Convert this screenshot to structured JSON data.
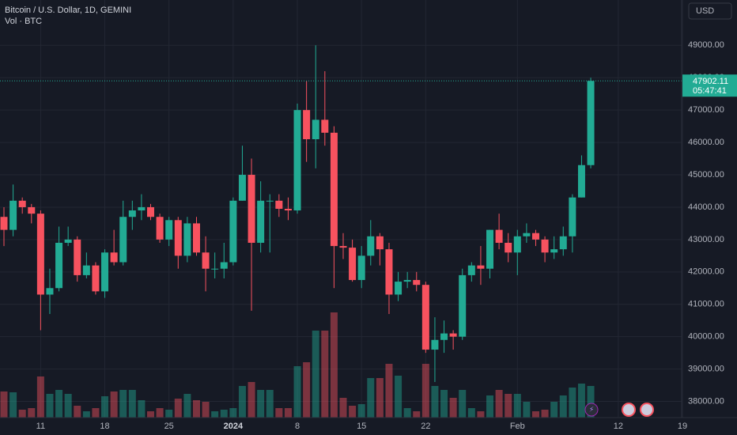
{
  "chart_data": {
    "type": "candlestick",
    "title": "Bitcoin / U.S. Dollar, 1D, GEMINI",
    "subtitle": "Vol · BTC",
    "currency": "USD",
    "countdown": "05:47:41",
    "up_color": "#22ab94",
    "down_color": "#f7525f",
    "x": [
      "2023-12-07",
      "2023-12-08",
      "2023-12-09",
      "2023-12-10",
      "2023-12-11",
      "2023-12-12",
      "2023-12-13",
      "2023-12-14",
      "2023-12-15",
      "2023-12-16",
      "2023-12-17",
      "2023-12-18",
      "2023-12-19",
      "2023-12-20",
      "2023-12-21",
      "2023-12-22",
      "2023-12-23",
      "2023-12-24",
      "2023-12-25",
      "2023-12-26",
      "2023-12-27",
      "2023-12-28",
      "2023-12-29",
      "2023-12-30",
      "2023-12-31",
      "2024-01-01",
      "2024-01-02",
      "2024-01-03",
      "2024-01-04",
      "2024-01-05",
      "2024-01-06",
      "2024-01-07",
      "2024-01-08",
      "2024-01-09",
      "2024-01-10",
      "2024-01-11",
      "2024-01-12",
      "2024-01-13",
      "2024-01-14",
      "2024-01-15",
      "2024-01-16",
      "2024-01-17",
      "2024-01-18",
      "2024-01-19",
      "2024-01-20",
      "2024-01-21",
      "2024-01-22",
      "2024-01-23",
      "2024-01-24",
      "2024-01-25",
      "2024-01-26",
      "2024-01-27",
      "2024-01-28",
      "2024-01-29",
      "2024-01-30",
      "2024-01-31",
      "2024-02-01",
      "2024-02-02",
      "2024-02-03",
      "2024-02-04",
      "2024-02-05",
      "2024-02-06",
      "2024-02-07",
      "2024-02-08",
      "2024-02-09"
    ],
    "open": [
      43700,
      43300,
      44200,
      44000,
      43800,
      41300,
      41500,
      42900,
      43000,
      41900,
      42200,
      41400,
      42600,
      42300,
      43700,
      43900,
      44000,
      43700,
      43000,
      43600,
      42500,
      43500,
      42600,
      42100,
      42100,
      42300,
      44200,
      45000,
      42900,
      44200,
      44200,
      43950,
      43900,
      47000,
      46100,
      46700,
      46300,
      42800,
      42750,
      41750,
      42500,
      43100,
      42700,
      41300,
      41700,
      41750,
      41600,
      39600,
      39900,
      40100,
      40000,
      41900,
      42200,
      42100,
      43300,
      42900,
      42600,
      43100,
      43200,
      43000,
      42600,
      42700,
      43100,
      44300,
      45300
    ],
    "high": [
      44000,
      44700,
      44300,
      44100,
      43900,
      42100,
      43400,
      43400,
      43100,
      42600,
      42300,
      42700,
      43300,
      44200,
      44200,
      44400,
      44100,
      43800,
      43700,
      43700,
      43700,
      43700,
      43100,
      42600,
      42900,
      44300,
      45900,
      45500,
      44800,
      44400,
      44400,
      44300,
      47200,
      47900,
      49000,
      48200,
      46500,
      43200,
      43000,
      42800,
      43600,
      43200,
      42900,
      42000,
      42000,
      42000,
      41700,
      40600,
      40500,
      40200,
      42100,
      42300,
      42800,
      43300,
      43800,
      43200,
      43300,
      43500,
      43300,
      43100,
      43100,
      43400,
      44400,
      45600,
      48000
    ],
    "low": [
      42800,
      43100,
      43800,
      43500,
      40200,
      40700,
      41400,
      42800,
      41700,
      41800,
      41300,
      41200,
      42200,
      42200,
      43300,
      43600,
      43600,
      42900,
      42800,
      42100,
      42300,
      42500,
      41400,
      41800,
      41800,
      42200,
      44200,
      40800,
      42600,
      42600,
      43700,
      43600,
      43800,
      45400,
      45200,
      45900,
      41500,
      42400,
      41700,
      41500,
      42200,
      42200,
      40700,
      41100,
      41500,
      41400,
      39500,
      38600,
      39500,
      39600,
      39900,
      41700,
      41600,
      41800,
      42700,
      42300,
      41900,
      42900,
      42800,
      42300,
      42400,
      42500,
      42600,
      44300,
      45200
    ],
    "close": [
      43300,
      44200,
      44000,
      43800,
      41300,
      41500,
      42900,
      43000,
      41900,
      42200,
      41400,
      42600,
      42300,
      43700,
      43900,
      44000,
      43700,
      43000,
      43600,
      42500,
      43500,
      42600,
      42100,
      42100,
      42300,
      44200,
      45000,
      42900,
      44200,
      44200,
      43950,
      43900,
      47000,
      46100,
      46700,
      46300,
      42800,
      42750,
      41750,
      42500,
      43100,
      42700,
      41300,
      41700,
      41750,
      41600,
      39600,
      39900,
      40100,
      40000,
      41900,
      42200,
      42100,
      43300,
      42900,
      42600,
      43100,
      43200,
      43000,
      42600,
      42700,
      43100,
      44300,
      45300,
      47902.11
    ],
    "volume": [
      990,
      960,
      300,
      360,
      1560,
      900,
      1050,
      900,
      450,
      240,
      360,
      810,
      990,
      1050,
      1050,
      660,
      240,
      360,
      300,
      720,
      900,
      660,
      600,
      240,
      300,
      360,
      1200,
      1350,
      1050,
      1050,
      360,
      360,
      1950,
      2100,
      3300,
      3300,
      3990,
      750,
      450,
      510,
      1500,
      1500,
      2040,
      1590,
      360,
      240,
      2040,
      1200,
      1050,
      750,
      1050,
      360,
      240,
      840,
      1050,
      900,
      900,
      600,
      240,
      300,
      600,
      840,
      1140,
      1290,
      1200
    ],
    "vlim": [
      0,
      4500
    ],
    "xlim": [
      "2023-12-07",
      "2024-02-19"
    ],
    "xticks": [
      {
        "value": "2023-12-11",
        "label": "11"
      },
      {
        "value": "2023-12-18",
        "label": "18"
      },
      {
        "value": "2023-12-25",
        "label": "25"
      },
      {
        "value": "2024-01-01",
        "label": "2024"
      },
      {
        "value": "2024-01-08",
        "label": "8"
      },
      {
        "value": "2024-01-15",
        "label": "15"
      },
      {
        "value": "2024-01-22",
        "label": "22"
      },
      {
        "value": "2024-02-01",
        "label": "Feb"
      },
      {
        "value": "2024-02-12",
        "label": "12"
      },
      {
        "value": "2024-02-19",
        "label": "19"
      }
    ],
    "ylim": [
      37500,
      50400
    ],
    "yticks": [
      {
        "value": 38000,
        "label": "38000.00"
      },
      {
        "value": 39000,
        "label": "39000.00"
      },
      {
        "value": 40000,
        "label": "40000.00"
      },
      {
        "value": 41000,
        "label": "41000.00"
      },
      {
        "value": 42000,
        "label": "42000.00"
      },
      {
        "value": 43000,
        "label": "43000.00"
      },
      {
        "value": 44000,
        "label": "44000.00"
      },
      {
        "value": 45000,
        "label": "45000.00"
      },
      {
        "value": 46000,
        "label": "46000.00"
      },
      {
        "value": 47000,
        "label": "47000.00"
      },
      {
        "value": 48000,
        "label": "48000.00"
      },
      {
        "value": 49000,
        "label": "49000.00"
      }
    ],
    "grid": true
  }
}
